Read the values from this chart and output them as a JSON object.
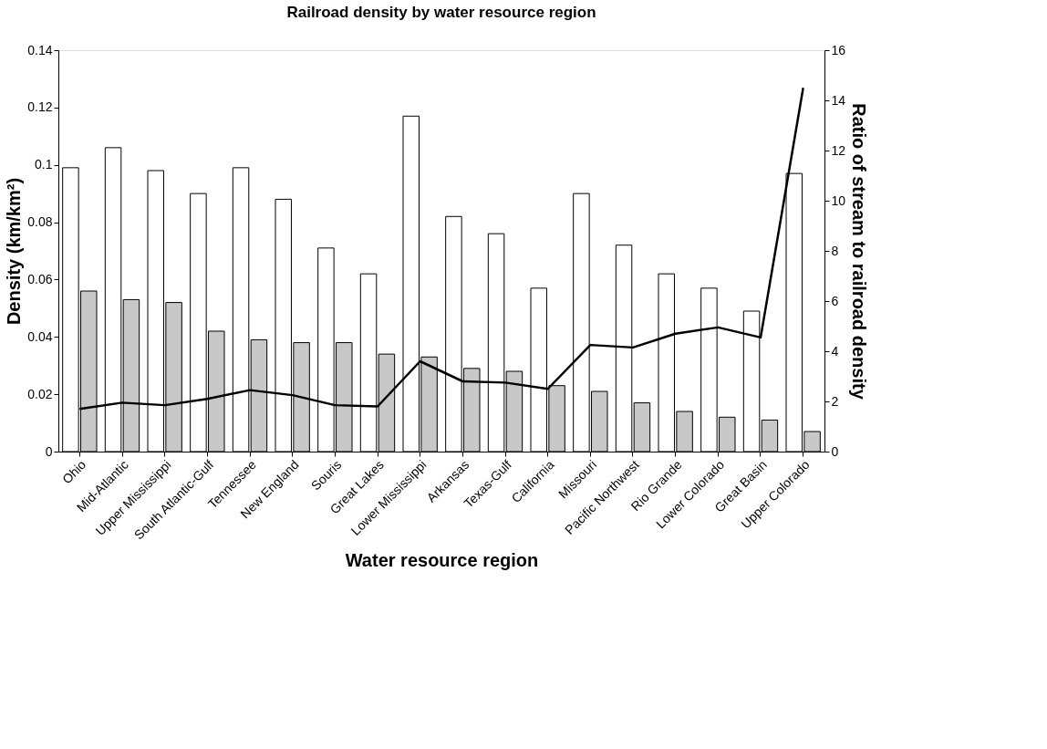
{
  "chart_data": {
    "type": "bar",
    "title": "Railroad density by water resource region",
    "xlabel": "Water resource region",
    "ylabel": "Density (km/km²)",
    "y2label": "Ratio of stream to railroad density",
    "categories": [
      "Ohio",
      "Mid-Atlantic",
      "Upper Mississippi",
      "South Atlantic-Gulf",
      "Tennessee",
      "New England",
      "Souris",
      "Great Lakes",
      "Lower Mississippi",
      "Arkansas",
      "Texas-Gulf",
      "California",
      "Missouri",
      "Pacific Northwest",
      "Rio Grande",
      "Lower Colorado",
      "Great Basin",
      "Upper Colorado"
    ],
    "series": [
      {
        "color": "#ffffff",
        "values": [
          0.099,
          0.106,
          0.098,
          0.09,
          0.099,
          0.088,
          0.071,
          0.062,
          0.117,
          0.082,
          0.076,
          0.057,
          0.09,
          0.072,
          0.062,
          0.057,
          0.049,
          0.097
        ]
      },
      {
        "color": "#c8c8c8",
        "values": [
          0.056,
          0.053,
          0.052,
          0.042,
          0.039,
          0.038,
          0.038,
          0.034,
          0.033,
          0.029,
          0.028,
          0.023,
          0.021,
          0.017,
          0.014,
          0.012,
          0.011,
          0.007
        ]
      },
      {
        "type": "line",
        "axis": "y2",
        "color": "#000000",
        "values": [
          1.7,
          1.95,
          1.85,
          2.1,
          2.45,
          2.25,
          1.85,
          1.8,
          3.6,
          2.8,
          2.75,
          2.5,
          4.25,
          4.15,
          4.7,
          4.95,
          4.55,
          14.5
        ]
      }
    ],
    "ylim": [
      0,
      0.14
    ],
    "yticks": [
      0,
      0.02,
      0.04,
      0.06,
      0.08,
      0.1,
      0.12,
      0.14
    ],
    "y2lim": [
      0,
      16
    ],
    "y2ticks": [
      0,
      2,
      4,
      6,
      8,
      10,
      12,
      14,
      16
    ],
    "grid": false,
    "legend": false,
    "marker": "none",
    "line_style": "solid"
  }
}
